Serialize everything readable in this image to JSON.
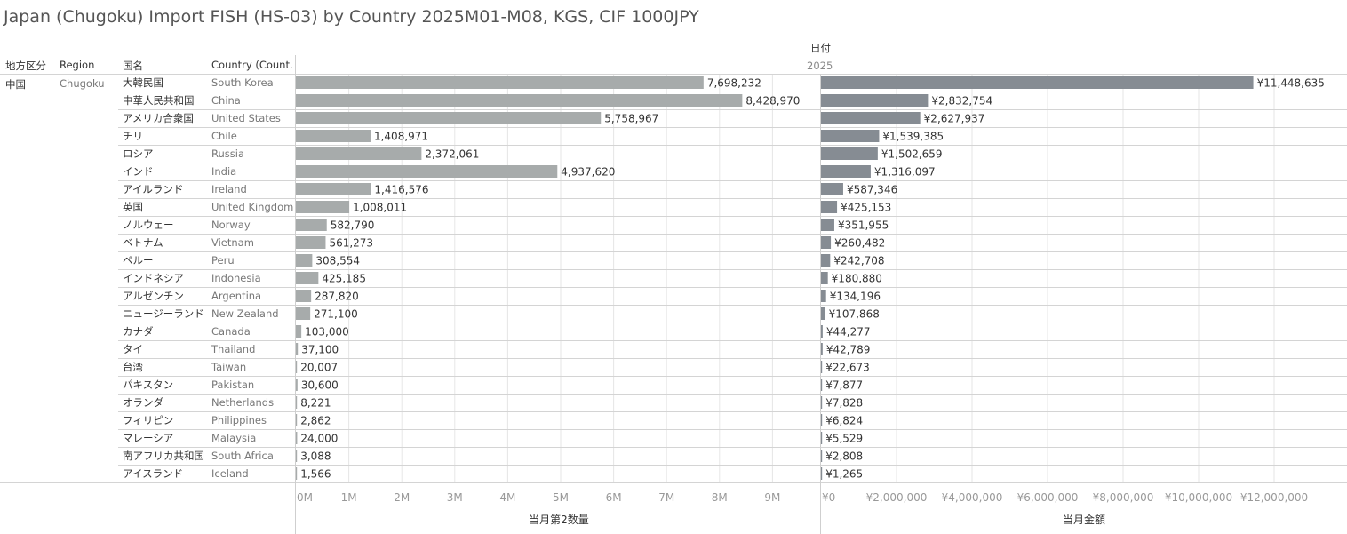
{
  "title": "Japan (Chugoku) Import FISH (HS-03) by Country 2025M01-M08, KGS, CIF 1000JPY",
  "headers": {
    "area_jp": "地方区分",
    "region": "Region",
    "country_jp": "国名",
    "country_en": "Country (Count..",
    "date": "日付",
    "year": "2025"
  },
  "row_group": {
    "area_jp": "中国",
    "region": "Chugoku"
  },
  "colors": {
    "qty_bar": "#a7abab",
    "value_bar": "#868c93",
    "grid": "#e6e6e6",
    "row_line": "#d4d4d4"
  },
  "chart_data": {
    "type": "bar",
    "orientation": "horizontal",
    "categories_jp": [
      "大韓民国",
      "中華人民共和国",
      "アメリカ合衆国",
      "チリ",
      "ロシア",
      "インド",
      "アイルランド",
      "英国",
      "ノルウェー",
      "ベトナム",
      "ペルー",
      "インドネシア",
      "アルゼンチン",
      "ニュージーランド",
      "カナダ",
      "タイ",
      "台湾",
      "パキスタン",
      "オランダ",
      "フィリピン",
      "マレーシア",
      "南アフリカ共和国",
      "アイスランド"
    ],
    "categories": [
      "South Korea",
      "China",
      "United States",
      "Chile",
      "Russia",
      "India",
      "Ireland",
      "United Kingdom",
      "Norway",
      "Vietnam",
      "Peru",
      "Indonesia",
      "Argentina",
      "New Zealand",
      "Canada",
      "Thailand",
      "Taiwan",
      "Pakistan",
      "Netherlands",
      "Philippines",
      "Malaysia",
      "South Africa",
      "Iceland"
    ],
    "series": [
      {
        "name": "当月第2数量",
        "xlabel": "当月第2数量",
        "xlim": [
          0,
          9500000
        ],
        "ticks": [
          0,
          1000000,
          2000000,
          3000000,
          4000000,
          5000000,
          6000000,
          7000000,
          8000000,
          9000000
        ],
        "tick_labels": [
          "0M",
          "1M",
          "2M",
          "3M",
          "4M",
          "5M",
          "6M",
          "7M",
          "8M",
          "9M"
        ],
        "values": [
          7698232,
          8428970,
          5758967,
          1408971,
          2372061,
          4937620,
          1416576,
          1008011,
          582790,
          561273,
          308554,
          425185,
          287820,
          271100,
          103000,
          37100,
          20007,
          30600,
          8221,
          2862,
          24000,
          3088,
          1566
        ],
        "value_labels": [
          "7,698,232",
          "8,428,970",
          "5,758,967",
          "1,408,971",
          "2,372,061",
          "4,937,620",
          "1,416,576",
          "1,008,011",
          "582,790",
          "561,273",
          "308,554",
          "425,185",
          "287,820",
          "271,100",
          "103,000",
          "37,100",
          "20,007",
          "30,600",
          "8,221",
          "2,862",
          "24,000",
          "3,088",
          "1,566"
        ]
      },
      {
        "name": "当月金額",
        "xlabel": "当月金額",
        "xlim": [
          0,
          13500000
        ],
        "ticks": [
          0,
          2000000,
          4000000,
          6000000,
          8000000,
          10000000,
          12000000
        ],
        "tick_labels": [
          "¥0",
          "¥2,000,000",
          "¥4,000,000",
          "¥6,000,000",
          "¥8,000,000",
          "¥10,000,000",
          "¥12,000,000"
        ],
        "values": [
          11448635,
          2832754,
          2627937,
          1539385,
          1502659,
          1316097,
          587346,
          425153,
          351955,
          260482,
          242708,
          180880,
          134196,
          107868,
          44277,
          42789,
          22673,
          7877,
          7828,
          6824,
          5529,
          2808,
          1265
        ],
        "value_labels": [
          "¥11,448,635",
          "¥2,832,754",
          "¥2,627,937",
          "¥1,539,385",
          "¥1,502,659",
          "¥1,316,097",
          "¥587,346",
          "¥425,153",
          "¥351,955",
          "¥260,482",
          "¥242,708",
          "¥180,880",
          "¥134,196",
          "¥107,868",
          "¥44,277",
          "¥42,789",
          "¥22,673",
          "¥7,877",
          "¥7,828",
          "¥6,824",
          "¥5,529",
          "¥2,808",
          "¥1,265"
        ]
      }
    ]
  }
}
